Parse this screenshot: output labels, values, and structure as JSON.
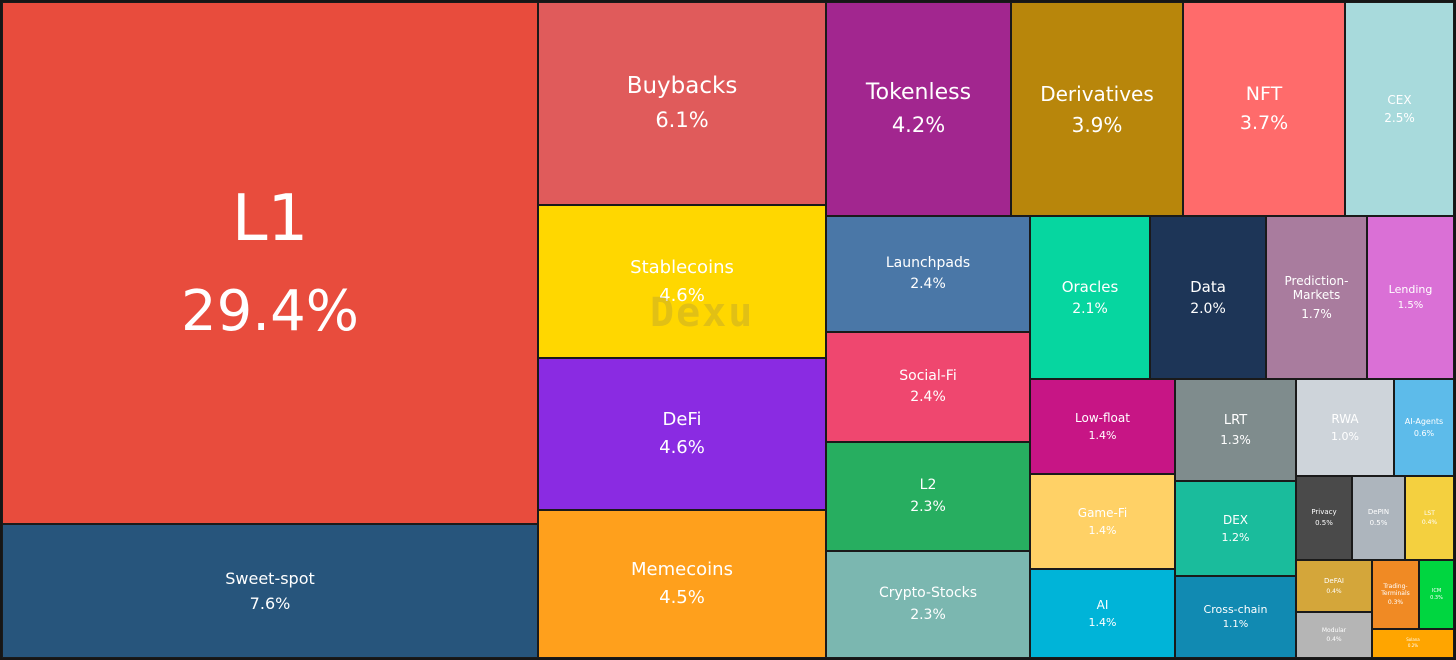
{
  "chart_data": {
    "type": "treemap",
    "title": "",
    "watermark": "Dexu",
    "items": [
      {
        "label": "L1",
        "value": "29.4%",
        "color": "#E84C3D",
        "text": "#ffffff"
      },
      {
        "label": "Sweet-spot",
        "value": "7.6%",
        "color": "#27557C",
        "text": "#ffffff"
      },
      {
        "label": "Buybacks",
        "value": "6.1%",
        "color": "#E05B5B",
        "text": "#ffffff"
      },
      {
        "label": "Stablecoins",
        "value": "4.6%",
        "color": "#FFD700",
        "text": "#ffffff"
      },
      {
        "label": "DeFi",
        "value": "4.6%",
        "color": "#8A2BE2",
        "text": "#ffffff"
      },
      {
        "label": "Memecoins",
        "value": "4.5%",
        "color": "#FFA01C",
        "text": "#ffffff"
      },
      {
        "label": "Tokenless",
        "value": "4.2%",
        "color": "#A2268F",
        "text": "#ffffff"
      },
      {
        "label": "Derivatives",
        "value": "3.9%",
        "color": "#B8860B",
        "text": "#ffffff"
      },
      {
        "label": "NFT",
        "value": "3.7%",
        "color": "#FF6B6B",
        "text": "#ffffff"
      },
      {
        "label": "CEX",
        "value": "2.5%",
        "color": "#A8DADC",
        "text": "#ffffff"
      },
      {
        "label": "Launchpads",
        "value": "2.4%",
        "color": "#4A77A7",
        "text": "#ffffff"
      },
      {
        "label": "Social-Fi",
        "value": "2.4%",
        "color": "#EF476F",
        "text": "#ffffff"
      },
      {
        "label": "L2",
        "value": "2.3%",
        "color": "#27AE60",
        "text": "#ffffff"
      },
      {
        "label": "Crypto-Stocks",
        "value": "2.3%",
        "color": "#7BB7B0",
        "text": "#ffffff"
      },
      {
        "label": "Oracles",
        "value": "2.1%",
        "color": "#06D6A0",
        "text": "#ffffff"
      },
      {
        "label": "Data",
        "value": "2.0%",
        "color": "#1D3557",
        "text": "#ffffff"
      },
      {
        "label": "Prediction-Markets",
        "value": "1.7%",
        "color": "#A97C9E",
        "text": "#ffffff"
      },
      {
        "label": "Lending",
        "value": "1.5%",
        "color": "#DA70D6",
        "text": "#ffffff"
      },
      {
        "label": "Low-float",
        "value": "1.4%",
        "color": "#C71585",
        "text": "#ffffff"
      },
      {
        "label": "Game-Fi",
        "value": "1.4%",
        "color": "#FFD166",
        "text": "#ffffff"
      },
      {
        "label": "AI",
        "value": "1.4%",
        "color": "#00B4D8",
        "text": "#ffffff"
      },
      {
        "label": "LRT",
        "value": "1.3%",
        "color": "#7F8C8D",
        "text": "#ffffff"
      },
      {
        "label": "DEX",
        "value": "1.2%",
        "color": "#1ABC9C",
        "text": "#ffffff"
      },
      {
        "label": "Cross-chain",
        "value": "1.1%",
        "color": "#118AB2",
        "text": "#ffffff"
      },
      {
        "label": "RWA",
        "value": "1.0%",
        "color": "#CED4DA",
        "text": "#ffffff"
      },
      {
        "label": "AI-Agents",
        "value": "0.6%",
        "color": "#5DBBEA",
        "text": "#ffffff"
      },
      {
        "label": "Privacy",
        "value": "0.5%",
        "color": "#4A4A4A",
        "text": "#ffffff"
      },
      {
        "label": "DePIN",
        "value": "0.5%",
        "color": "#ADB5BD",
        "text": "#ffffff"
      },
      {
        "label": "LST",
        "value": "0.4%",
        "color": "#F4D03F",
        "text": "#ffffff"
      },
      {
        "label": "DeFAI",
        "value": "0.4%",
        "color": "#D4A63A",
        "text": "#ffffff"
      },
      {
        "label": "Trading-Terminals",
        "value": "0.3%",
        "color": "#F08A24",
        "text": "#ffffff"
      },
      {
        "label": "ICM",
        "value": "0.3%",
        "color": "#00D640",
        "text": "#ffffff"
      },
      {
        "label": "Modular",
        "value": "0.4%",
        "color": "#B5B5B5",
        "text": "#ffffff"
      },
      {
        "label": "Solana",
        "value": "0.2%",
        "color": "#FFA500",
        "text": "#ffffff"
      }
    ]
  }
}
